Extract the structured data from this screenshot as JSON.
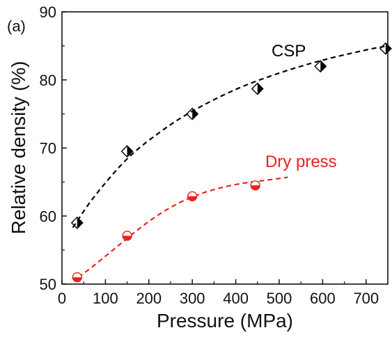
{
  "chart_data": {
    "type": "scatter",
    "panel_label": "(a)",
    "xlabel": "Pressure (MPa)",
    "ylabel": "Relative density (%)",
    "xlim": [
      0,
      750
    ],
    "ylim": [
      50,
      90
    ],
    "xticks": [
      0,
      100,
      200,
      300,
      400,
      500,
      600,
      700
    ],
    "yticks": [
      50,
      60,
      70,
      80,
      90
    ],
    "grid": false,
    "legend": "none",
    "series": [
      {
        "name": "CSP",
        "color": "#000000",
        "marker": "half-filled-diamond",
        "points": [
          {
            "x": 35,
            "y": 59.0
          },
          {
            "x": 150,
            "y": 69.5
          },
          {
            "x": 300,
            "y": 75.0
          },
          {
            "x": 450,
            "y": 78.7
          },
          {
            "x": 595,
            "y": 82.0
          },
          {
            "x": 745,
            "y": 84.6
          }
        ],
        "fit": {
          "style": "dashed",
          "points": [
            {
              "x": 25,
              "y": 58.3
            },
            {
              "x": 75,
              "y": 62.9
            },
            {
              "x": 150,
              "y": 68.4
            },
            {
              "x": 225,
              "y": 72.3
            },
            {
              "x": 300,
              "y": 75.4
            },
            {
              "x": 400,
              "y": 78.6
            },
            {
              "x": 500,
              "y": 81.0
            },
            {
              "x": 600,
              "y": 82.9
            },
            {
              "x": 700,
              "y": 84.4
            },
            {
              "x": 750,
              "y": 85.0
            }
          ]
        }
      },
      {
        "name": "Dry press",
        "color": "#e8231f",
        "marker": "half-filled-circle",
        "points": [
          {
            "x": 35,
            "y": 51.0
          },
          {
            "x": 150,
            "y": 57.1
          },
          {
            "x": 300,
            "y": 62.9
          },
          {
            "x": 445,
            "y": 64.5
          }
        ],
        "fit": {
          "style": "dashed",
          "points": [
            {
              "x": 38,
              "y": 51.0
            },
            {
              "x": 75,
              "y": 52.8
            },
            {
              "x": 125,
              "y": 55.4
            },
            {
              "x": 175,
              "y": 58.0
            },
            {
              "x": 225,
              "y": 60.3
            },
            {
              "x": 275,
              "y": 62.1
            },
            {
              "x": 325,
              "y": 63.4
            },
            {
              "x": 375,
              "y": 64.3
            },
            {
              "x": 425,
              "y": 64.9
            },
            {
              "x": 475,
              "y": 65.3
            },
            {
              "x": 520,
              "y": 65.7
            }
          ]
        }
      }
    ]
  }
}
